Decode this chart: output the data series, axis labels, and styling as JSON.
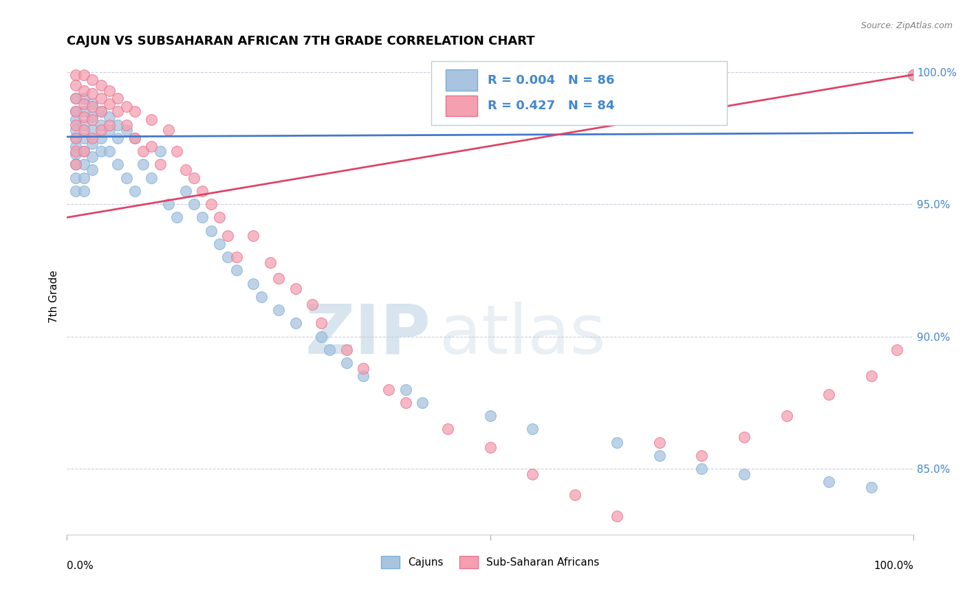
{
  "title": "CAJUN VS SUBSAHARAN AFRICAN 7TH GRADE CORRELATION CHART",
  "source": "Source: ZipAtlas.com",
  "ylabel": "7th Grade",
  "legend_entries": [
    {
      "label": "Cajuns",
      "color": "#a8c4e0",
      "edge_color": "#7aafd4",
      "R": 0.004,
      "N": 86
    },
    {
      "label": "Sub-Saharan Africans",
      "color": "#f4a0b0",
      "edge_color": "#e87090",
      "R": 0.427,
      "N": 84
    }
  ],
  "xlim": [
    0.0,
    1.0
  ],
  "ylim": [
    0.825,
    1.005
  ],
  "yticks": [
    0.85,
    0.9,
    0.95,
    1.0
  ],
  "ytick_labels": [
    "85.0%",
    "90.0%",
    "95.0%",
    "100.0%"
  ],
  "grid_color": "#ccccdd",
  "background_color": "#ffffff",
  "blue_scatter_x": [
    0.01,
    0.01,
    0.01,
    0.01,
    0.01,
    0.01,
    0.01,
    0.01,
    0.01,
    0.01,
    0.02,
    0.02,
    0.02,
    0.02,
    0.02,
    0.02,
    0.02,
    0.02,
    0.03,
    0.03,
    0.03,
    0.03,
    0.03,
    0.03,
    0.04,
    0.04,
    0.04,
    0.04,
    0.05,
    0.05,
    0.05,
    0.06,
    0.06,
    0.06,
    0.07,
    0.07,
    0.08,
    0.08,
    0.09,
    0.1,
    0.11,
    0.12,
    0.13,
    0.14,
    0.15,
    0.16,
    0.17,
    0.18,
    0.19,
    0.2,
    0.22,
    0.23,
    0.25,
    0.27,
    0.3,
    0.31,
    0.33,
    0.35,
    0.4,
    0.42,
    0.5,
    0.55,
    0.65,
    0.7,
    0.75,
    0.8,
    0.9,
    0.95,
    1.0
  ],
  "blue_scatter_y": [
    0.99,
    0.985,
    0.982,
    0.978,
    0.975,
    0.972,
    0.969,
    0.965,
    0.96,
    0.955,
    0.99,
    0.985,
    0.98,
    0.975,
    0.97,
    0.965,
    0.96,
    0.955,
    0.988,
    0.983,
    0.978,
    0.973,
    0.968,
    0.963,
    0.985,
    0.98,
    0.975,
    0.97,
    0.983,
    0.978,
    0.97,
    0.98,
    0.975,
    0.965,
    0.978,
    0.96,
    0.975,
    0.955,
    0.965,
    0.96,
    0.97,
    0.95,
    0.945,
    0.955,
    0.95,
    0.945,
    0.94,
    0.935,
    0.93,
    0.925,
    0.92,
    0.915,
    0.91,
    0.905,
    0.9,
    0.895,
    0.89,
    0.885,
    0.88,
    0.875,
    0.87,
    0.865,
    0.86,
    0.855,
    0.85,
    0.848,
    0.845,
    0.843,
    0.999
  ],
  "pink_scatter_x": [
    0.01,
    0.01,
    0.01,
    0.01,
    0.01,
    0.01,
    0.01,
    0.01,
    0.02,
    0.02,
    0.02,
    0.02,
    0.02,
    0.02,
    0.03,
    0.03,
    0.03,
    0.03,
    0.03,
    0.04,
    0.04,
    0.04,
    0.04,
    0.05,
    0.05,
    0.05,
    0.06,
    0.06,
    0.07,
    0.07,
    0.08,
    0.08,
    0.09,
    0.1,
    0.1,
    0.11,
    0.12,
    0.13,
    0.14,
    0.15,
    0.16,
    0.17,
    0.18,
    0.19,
    0.2,
    0.22,
    0.24,
    0.25,
    0.27,
    0.29,
    0.3,
    0.33,
    0.35,
    0.38,
    0.4,
    0.45,
    0.5,
    0.55,
    0.6,
    0.65,
    0.7,
    0.75,
    0.8,
    0.85,
    0.9,
    0.95,
    0.98,
    1.0
  ],
  "pink_scatter_y": [
    0.999,
    0.995,
    0.99,
    0.985,
    0.98,
    0.975,
    0.97,
    0.965,
    0.999,
    0.993,
    0.988,
    0.983,
    0.978,
    0.97,
    0.997,
    0.992,
    0.987,
    0.982,
    0.975,
    0.995,
    0.99,
    0.985,
    0.978,
    0.993,
    0.988,
    0.98,
    0.99,
    0.985,
    0.987,
    0.98,
    0.985,
    0.975,
    0.97,
    0.982,
    0.972,
    0.965,
    0.978,
    0.97,
    0.963,
    0.96,
    0.955,
    0.95,
    0.945,
    0.938,
    0.93,
    0.938,
    0.928,
    0.922,
    0.918,
    0.912,
    0.905,
    0.895,
    0.888,
    0.88,
    0.875,
    0.865,
    0.858,
    0.848,
    0.84,
    0.832,
    0.86,
    0.855,
    0.862,
    0.87,
    0.878,
    0.885,
    0.895,
    0.999
  ],
  "blue_line_x": [
    0.0,
    1.0
  ],
  "blue_line_y": [
    0.9755,
    0.977
  ],
  "pink_line_x": [
    0.0,
    1.0
  ],
  "pink_line_y": [
    0.945,
    0.999
  ],
  "blue_line_color": "#4477cc",
  "pink_line_color": "#dd4466",
  "watermark_zip": "ZIP",
  "watermark_atlas": "atlas",
  "watermark_color": "#ccd8e8"
}
